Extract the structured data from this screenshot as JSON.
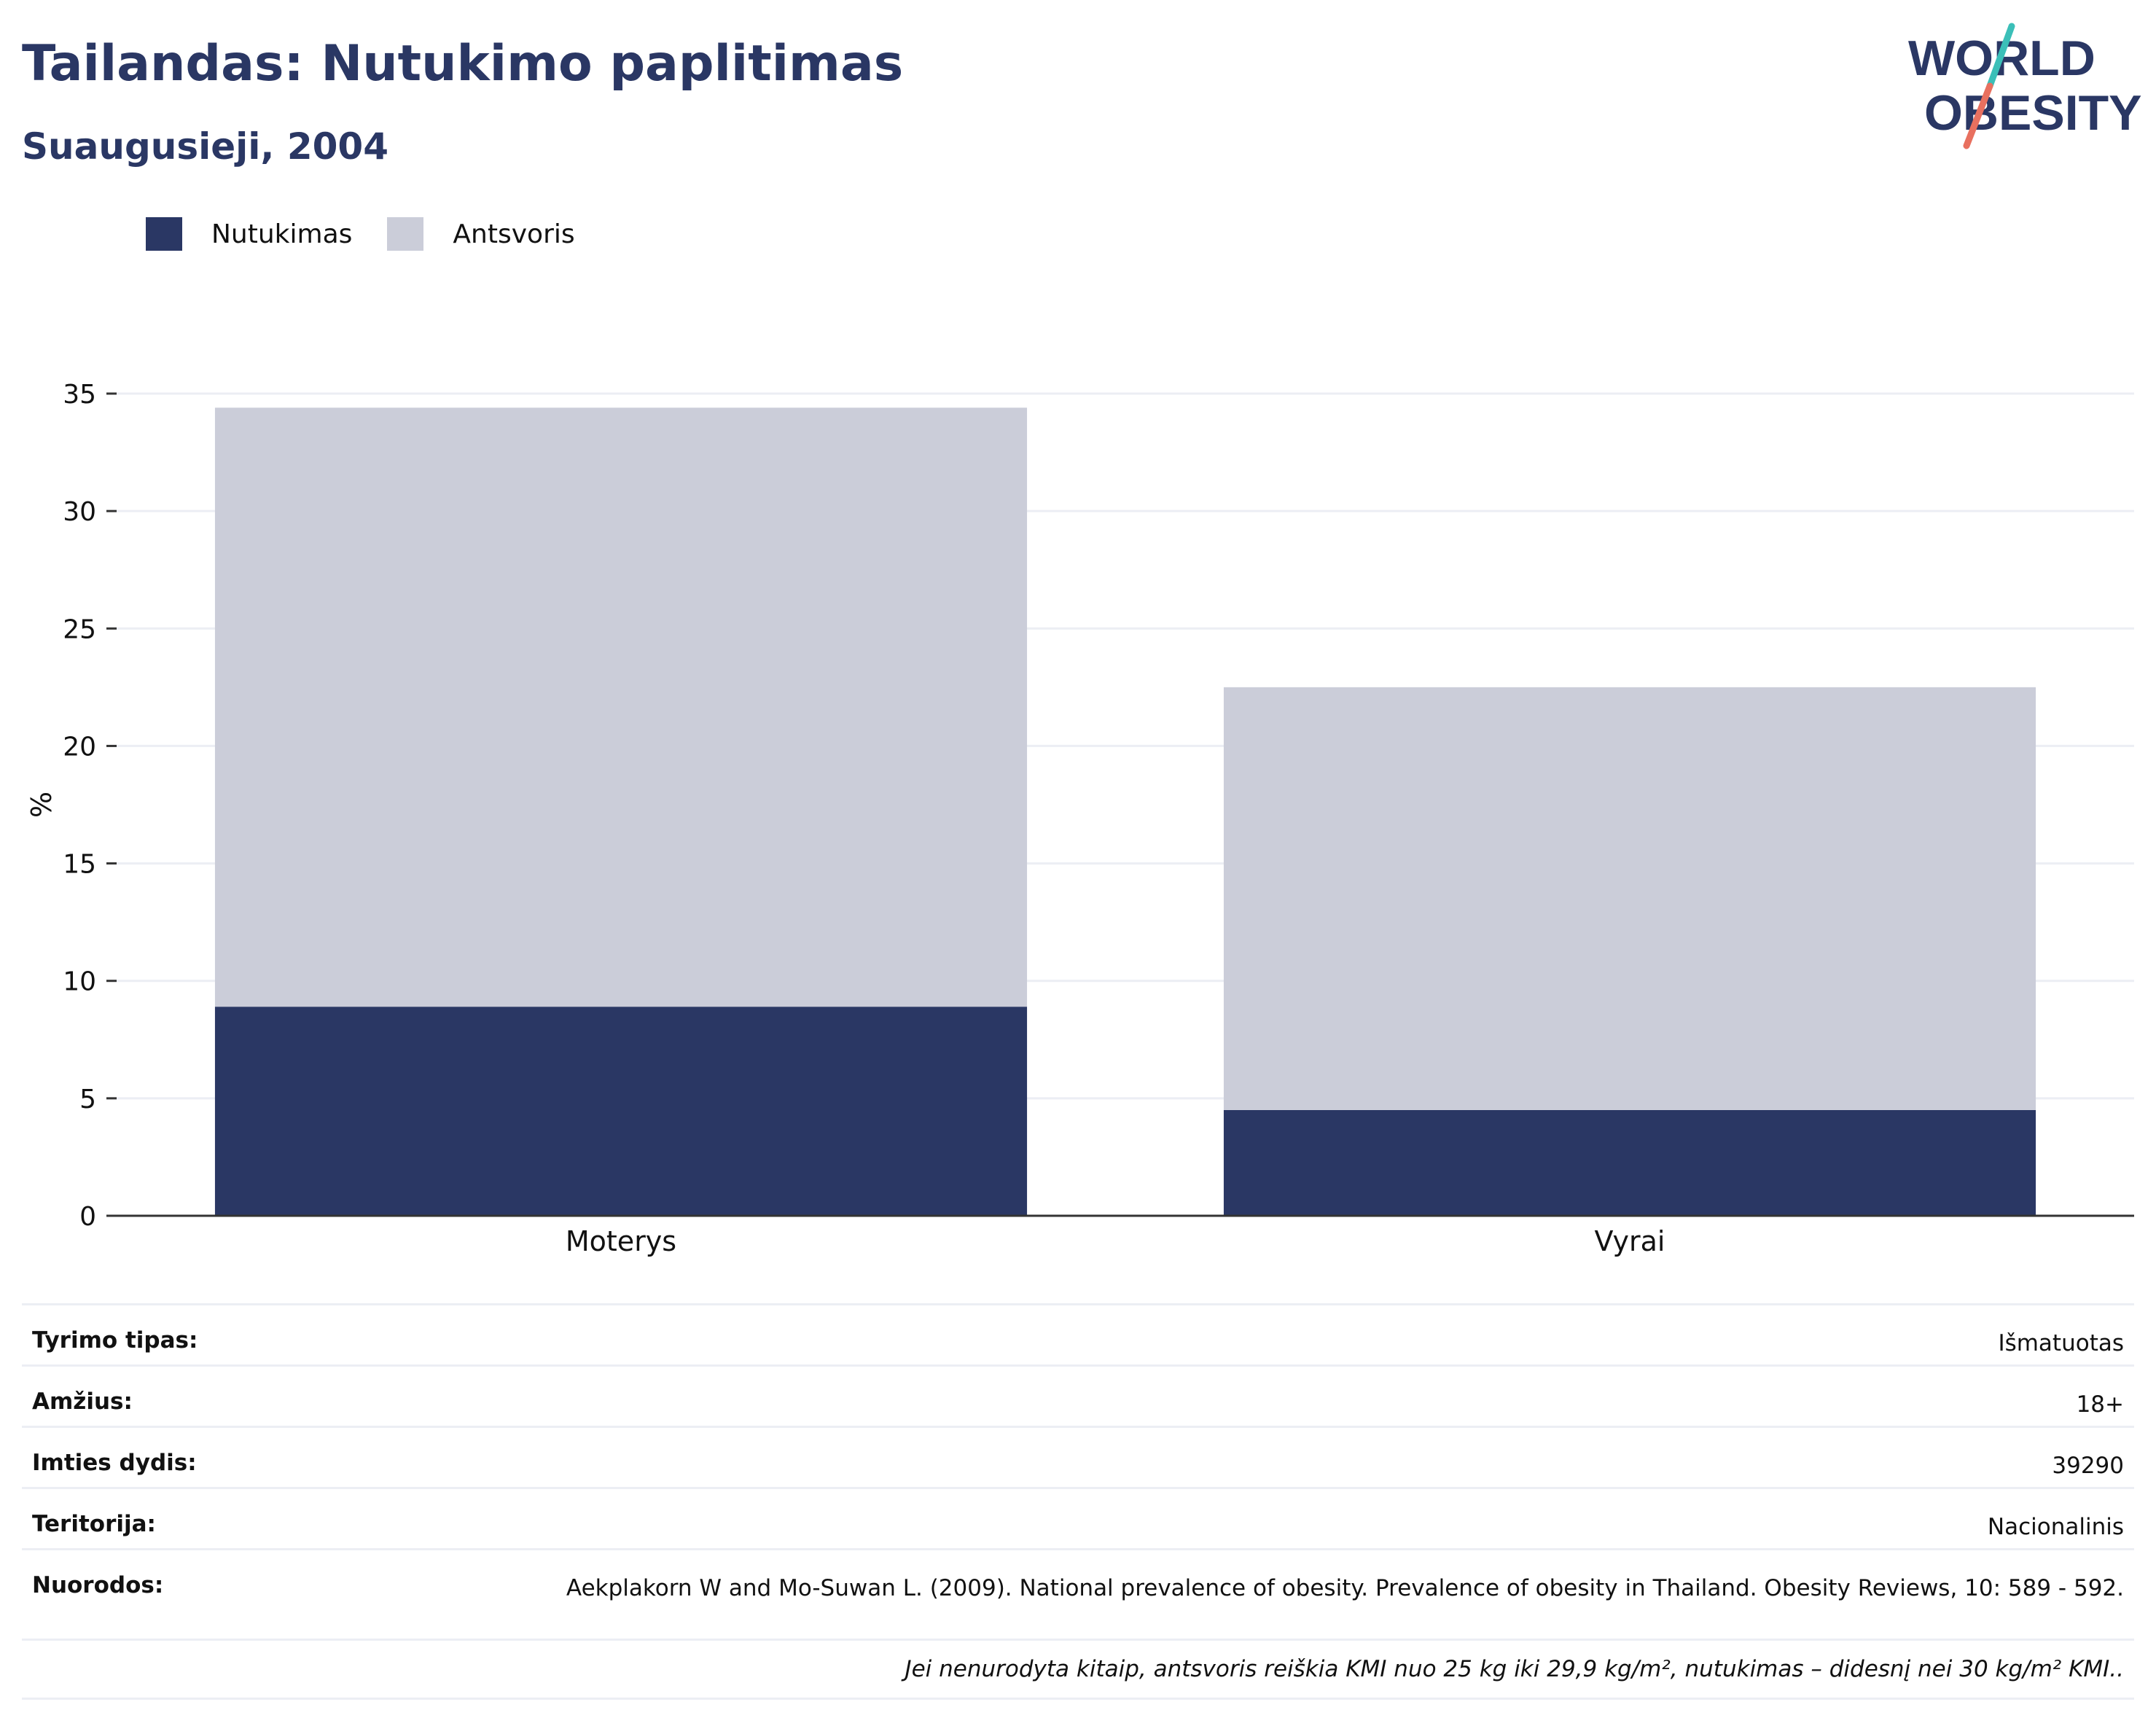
{
  "header": {
    "title": "Tailandas: Nutukimo paplitimas",
    "subtitle": "Suaugusieji, 2004"
  },
  "logo": {
    "line1": "WORLD",
    "line2": "OBESITY"
  },
  "colors": {
    "obesity": "#2a3764",
    "overweight": "#cbcdd9",
    "title": "#2a3764",
    "logo_teal": "#3bbfb8",
    "logo_coral": "#e8705f"
  },
  "chart_data": {
    "type": "bar",
    "stacked": true,
    "categories": [
      "Moterys",
      "Vyrai"
    ],
    "series": [
      {
        "name": "Nutukimas",
        "values": [
          8.9,
          4.5
        ]
      },
      {
        "name": "Antsvoris",
        "values": [
          25.5,
          18.0
        ]
      }
    ],
    "ylabel": "%",
    "ylim": [
      0,
      35
    ],
    "yticks": [
      0,
      5,
      10,
      15,
      20,
      25,
      30,
      35
    ],
    "grid": true,
    "legend": "top-left"
  },
  "meta": {
    "rows": [
      {
        "key": "Tyrimo tipas:",
        "value": "Išmatuotas"
      },
      {
        "key": "Amžius:",
        "value": "18+"
      },
      {
        "key": "Imties dydis:",
        "value": "39290"
      },
      {
        "key": "Teritorija:",
        "value": "Nacionalinis"
      },
      {
        "key": "Nuorodos:",
        "value": "Aekplakorn W and Mo-Suwan L. (2009). National prevalence of obesity. Prevalence of obesity in Thailand. Obesity Reviews, 10: 589 - 592."
      }
    ],
    "note": "Jei nenurodyta kitaip, antsvoris reiškia KMI nuo 25 kg iki 29,9 kg/m², nutukimas – didesnį nei 30 kg/m² KMI.."
  }
}
